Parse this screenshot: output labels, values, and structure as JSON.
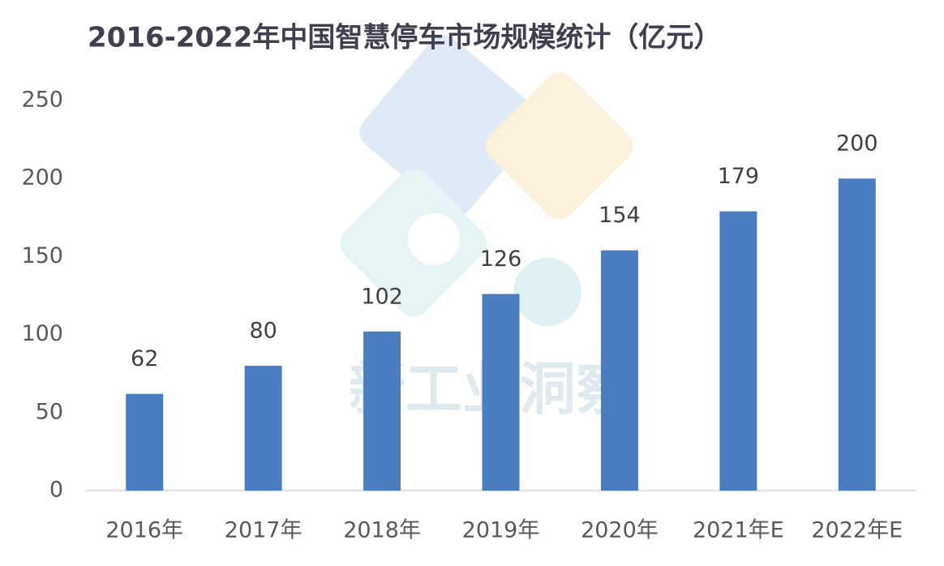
{
  "chart_data": {
    "type": "bar",
    "title": "2016-2022年中国智慧停车市场规模统计（亿元）",
    "categories": [
      "2016年",
      "2017年",
      "2018年",
      "2019年",
      "2020年",
      "2021年E",
      "2022年E"
    ],
    "values": [
      62,
      80,
      102,
      126,
      154,
      179,
      200
    ],
    "color": "#4a7ec0",
    "ylim": [
      0,
      250
    ],
    "yticks": [
      0,
      50,
      100,
      150,
      200,
      250
    ],
    "grid": false,
    "watermark": "新工业洞察"
  }
}
